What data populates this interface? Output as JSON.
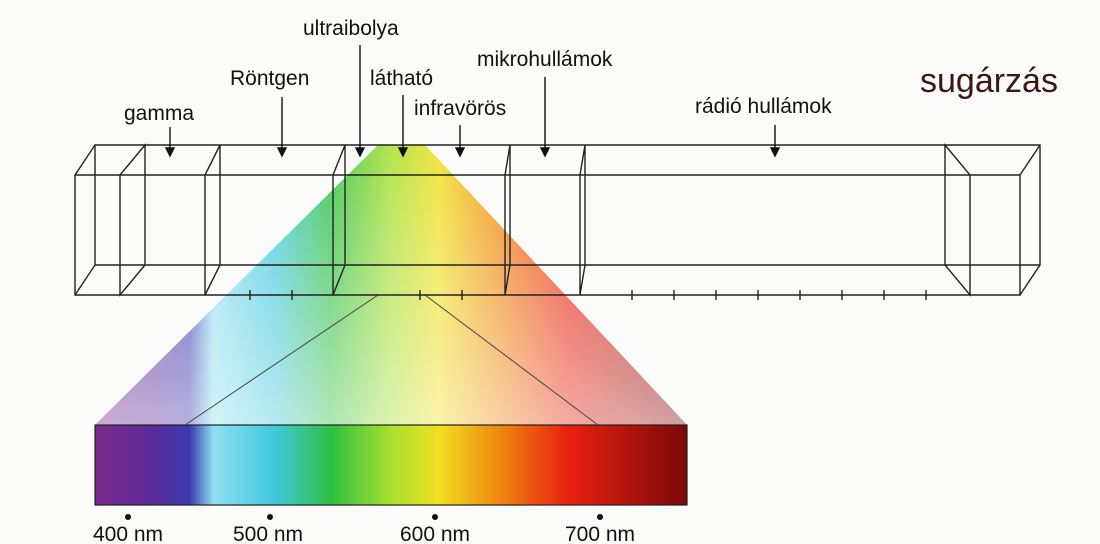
{
  "title": "sugárzás",
  "bands": [
    {
      "label": "gamma"
    },
    {
      "label": "Röntgen"
    },
    {
      "label": "ultraibolya"
    },
    {
      "label": "látható"
    },
    {
      "label": "infravörös"
    },
    {
      "label": "mikrohullámok"
    },
    {
      "label": "rádió hullámok"
    }
  ],
  "scale": [
    "400 nm",
    "500 nm",
    "600 nm",
    "700 nm"
  ]
}
